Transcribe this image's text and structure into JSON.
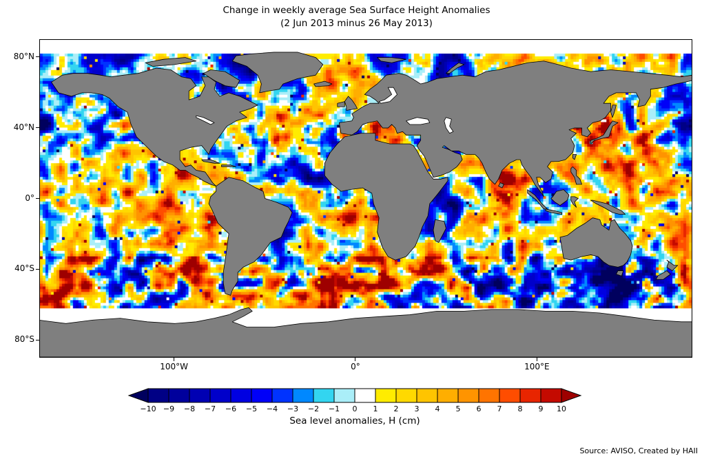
{
  "figure": {
    "title_line1": "Change in weekly average Sea Surface Height Anomalies",
    "title_line2": "(2 Jun 2013 minus 26 May 2013)",
    "source": "Source: AVISO, Created by HAII"
  },
  "map": {
    "y_ticks": [
      "80°N",
      "40°N",
      "0°",
      "40°S",
      "80°S"
    ],
    "x_ticks": [
      "100°W",
      "0°",
      "100°E"
    ],
    "land_color": "#7f7f7f",
    "no_data_color": "#ffffff"
  },
  "colorbar": {
    "label": "Sea level anomalies, H (cm)",
    "tick_labels": [
      "−10",
      "−9",
      "−8",
      "−7",
      "−6",
      "−5",
      "−4",
      "−3",
      "−2",
      "−1",
      "0",
      "1",
      "2",
      "3",
      "4",
      "5",
      "6",
      "7",
      "8",
      "9",
      "10"
    ],
    "arrow_left_color": "#00005e",
    "arrow_right_color": "#9e0000",
    "segment_colors": [
      "#000085",
      "#00009c",
      "#0000b3",
      "#0000ca",
      "#0000e1",
      "#0000f8",
      "#0033ff",
      "#0088ff",
      "#33d5f0",
      "#aaeef8",
      "#ffffff",
      "#ffec00",
      "#ffd900",
      "#ffc400",
      "#ffae00",
      "#ff9400",
      "#ff7400",
      "#ff4d00",
      "#e82500",
      "#c40a00"
    ]
  },
  "chart_data": {
    "type": "heatmap",
    "title": "Change in weekly average Sea Surface Height Anomalies",
    "subtitle": "(2 Jun 2013 minus 26 May 2013)",
    "projection": "equirectangular world map",
    "x_axis": {
      "tick_labels": [
        "100°W",
        "0°",
        "100°E"
      ],
      "range_deg_lon": [
        -174,
        186
      ]
    },
    "y_axis": {
      "tick_labels": [
        "80°N",
        "40°N",
        "0°",
        "40°S",
        "80°S"
      ],
      "range_deg_lat": [
        -90,
        90
      ]
    },
    "variable": "Sea level anomalies, H (cm)",
    "colorbar": {
      "label": "Sea level anomalies, H (cm)",
      "bin_edges_cm": [
        -10,
        -9,
        -8,
        -7,
        -6,
        -5,
        -4,
        -3,
        -2,
        -1,
        0,
        1,
        2,
        3,
        4,
        5,
        6,
        7,
        8,
        9,
        10
      ],
      "extend": "both",
      "colors_low_to_high": [
        "#00005e",
        "#000085",
        "#00009c",
        "#0000b3",
        "#0000ca",
        "#0000e1",
        "#0000f8",
        "#0033ff",
        "#0088ff",
        "#33d5f0",
        "#aaeef8",
        "#ffffff",
        "#ffec00",
        "#ffd900",
        "#ffc400",
        "#ffae00",
        "#ff9400",
        "#ff7400",
        "#ff4d00",
        "#e82500",
        "#c40a00",
        "#9e0000"
      ]
    },
    "land_color": "#7f7f7f",
    "no_data_regions": "white (no data) poleward of about 82°N and 62°S",
    "pattern_summary": "Mottled field of small-scale weekly SSH anomaly differences of roughly ±1–5 cm (yellow/orange positive, cyan/blue negative) across all ocean basins, with intense ±8–10 cm eddy signals along western boundary currents (Gulf Stream, Kuroshio, Agulhas, Brazil–Malvinas) and the Antarctic Circumpolar Current belt near 40°S–60°S.",
    "source": "Source: AVISO, Created by HAII"
  }
}
